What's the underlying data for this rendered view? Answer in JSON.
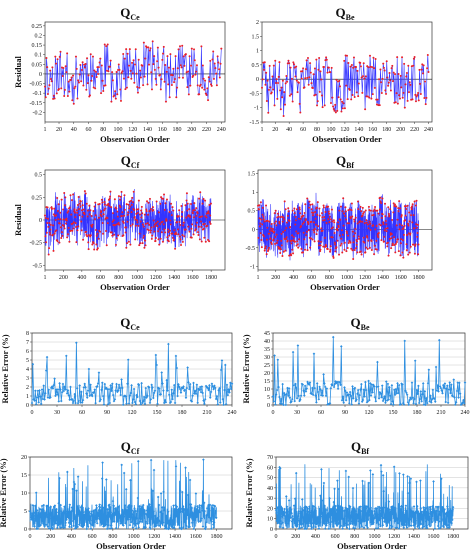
{
  "colors": {
    "residual_line": "#3333ff",
    "residual_marker": "#e8202a",
    "error_series": "#2e8fe0",
    "zero_line": "#111111",
    "grid": "#c8c8c8"
  },
  "chart_data": [
    {
      "type": "line",
      "panel": "residual-ce",
      "title_main": "Q",
      "title_sub": "Ce",
      "xlabel": "Observation Order",
      "ylabel": "Residual",
      "xlim": [
        1,
        245
      ],
      "ylim": [
        -0.25,
        0.27
      ],
      "xticks": [
        1,
        20,
        40,
        60,
        80,
        100,
        120,
        140,
        160,
        180,
        200,
        220,
        240
      ],
      "yticks": [
        -0.2,
        -0.15,
        -0.1,
        -0.05,
        0,
        0.05,
        0.1,
        0.15,
        0.2,
        0.25
      ],
      "n_points": 240,
      "approx_range": [
        -0.22,
        0.24
      ],
      "seed": 11,
      "grid": false,
      "zero_line": true
    },
    {
      "type": "line",
      "panel": "residual-be",
      "title_main": "Q",
      "title_sub": "Be",
      "xlabel": "Observation Order",
      "ylabel": "",
      "xlim": [
        1,
        245
      ],
      "ylim": [
        -1.5,
        2.0
      ],
      "xticks": [
        1,
        20,
        40,
        60,
        80,
        100,
        120,
        140,
        160,
        180,
        200,
        220,
        240
      ],
      "yticks": [
        -1.5,
        -1,
        -0.5,
        0,
        0.5,
        1,
        1.5,
        2
      ],
      "n_points": 240,
      "approx_range": [
        -1.3,
        1.9
      ],
      "seed": 23,
      "grid": false,
      "zero_line": true
    },
    {
      "type": "line",
      "panel": "residual-cf",
      "title_main": "Q",
      "title_sub": "Cf",
      "xlabel": "Observation Order",
      "ylabel": "Residual",
      "xlim": [
        1,
        1950
      ],
      "ylim": [
        -0.55,
        0.55
      ],
      "xticks": [
        1,
        200,
        400,
        600,
        800,
        1000,
        1200,
        1400,
        1600,
        1800
      ],
      "yticks": [
        -0.5,
        -0.25,
        0,
        0.25,
        0.5
      ],
      "n_points": 900,
      "approx_range": [
        -0.52,
        0.4
      ],
      "seed": 37,
      "grid": false,
      "zero_line": true
    },
    {
      "type": "line",
      "panel": "residual-bf",
      "title_main": "Q",
      "title_sub": "Bf",
      "xlabel": "Observation Order",
      "ylabel": "",
      "xlim": [
        1,
        1950
      ],
      "ylim": [
        -1.1,
        1.6
      ],
      "xticks": [
        1,
        200,
        400,
        600,
        800,
        1000,
        1200,
        1400,
        1600,
        1800
      ],
      "yticks": [
        -1,
        -0.5,
        0,
        0.5,
        1,
        1.5
      ],
      "n_points": 1000,
      "approx_range": [
        -1.0,
        1.5
      ],
      "seed": 41,
      "grid": false,
      "zero_line": true
    },
    {
      "type": "line",
      "panel": "error-ce",
      "title_main": "Q",
      "title_sub": "Ce",
      "xlabel": "",
      "ylabel": "Relative Error (%)",
      "xlim": [
        0,
        240
      ],
      "ylim": [
        0,
        8
      ],
      "xticks": [
        0,
        30,
        60,
        90,
        120,
        150,
        180,
        210,
        240
      ],
      "yticks": [
        0,
        1,
        2,
        3,
        4,
        5,
        6,
        7,
        8
      ],
      "n_points": 240,
      "approx_range": [
        0,
        7.2
      ],
      "seed": 53,
      "grid": true,
      "zero_line": false
    },
    {
      "type": "line",
      "panel": "error-be",
      "title_main": "Q",
      "title_sub": "Be",
      "xlabel": "",
      "ylabel": "Relative Error (%)",
      "xlim": [
        0,
        240
      ],
      "ylim": [
        0,
        45
      ],
      "xticks": [
        0,
        30,
        60,
        90,
        120,
        150,
        180,
        210,
        240
      ],
      "yticks": [
        0,
        5,
        10,
        15,
        20,
        25,
        30,
        35,
        40,
        45
      ],
      "n_points": 240,
      "approx_range": [
        0,
        43
      ],
      "seed": 67,
      "grid": true,
      "zero_line": false
    },
    {
      "type": "line",
      "panel": "error-cf",
      "title_main": "Q",
      "title_sub": "Cf",
      "xlabel": "Observation Order",
      "ylabel": "Relative Error (%)",
      "xlim": [
        0,
        1950
      ],
      "ylim": [
        0,
        20
      ],
      "xticks": [
        0,
        200,
        400,
        600,
        800,
        1000,
        1200,
        1400,
        1600,
        1800
      ],
      "yticks": [
        0,
        5,
        10,
        15,
        20
      ],
      "n_points": 900,
      "approx_range": [
        0,
        19.5
      ],
      "seed": 71,
      "grid": true,
      "zero_line": false
    },
    {
      "type": "line",
      "panel": "error-bf",
      "title_main": "Q",
      "title_sub": "Bf",
      "xlabel": "Observation Order",
      "ylabel": "Relative Error (%)",
      "xlim": [
        0,
        1950
      ],
      "ylim": [
        0,
        70
      ],
      "xticks": [
        0,
        200,
        400,
        600,
        800,
        1000,
        1200,
        1400,
        1600,
        1800
      ],
      "yticks": [
        0,
        10,
        20,
        30,
        40,
        50,
        60,
        70
      ],
      "n_points": 1000,
      "approx_range": [
        0,
        65
      ],
      "seed": 83,
      "grid": true,
      "zero_line": false
    }
  ]
}
